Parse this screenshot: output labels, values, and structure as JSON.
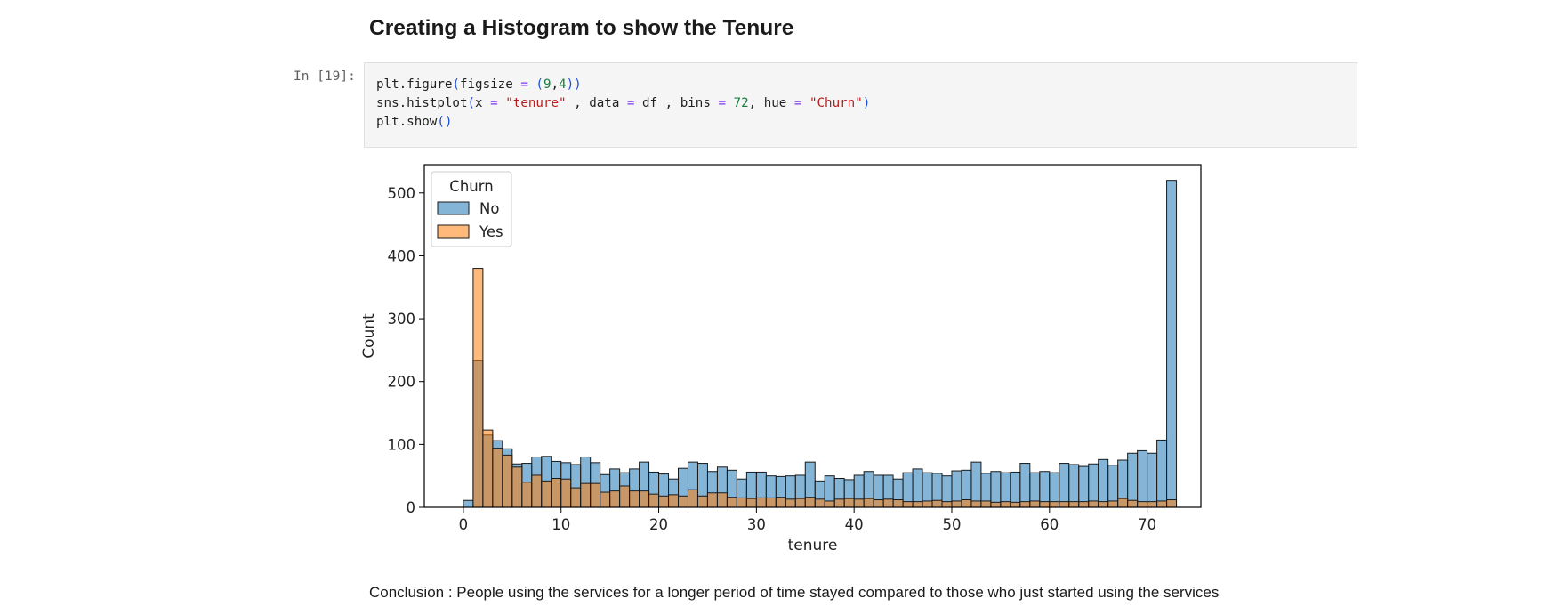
{
  "cell": {
    "heading": "Creating a Histogram to show the Tenure",
    "prompt": "In [19]:",
    "code_lines": [
      "plt.figure(figsize = (9,4))",
      "sns.histplot(x = \"tenure\" , data = df , bins = 72, hue = \"Churn\")",
      "plt.show()"
    ]
  },
  "conclusion": "Conclusion : People using the services for a longer period of time stayed compared to those who just started using the services",
  "chart_data": {
    "type": "bar",
    "xlabel": "tenure",
    "ylabel": "Count",
    "xlim": [
      -4,
      75.5
    ],
    "ylim": [
      0,
      545
    ],
    "xticks": [
      0,
      10,
      20,
      30,
      40,
      50,
      60,
      70
    ],
    "yticks": [
      0,
      100,
      200,
      300,
      400,
      500
    ],
    "bin_start": 0,
    "bin_width": 1,
    "legend": {
      "title": "Churn",
      "placement": "upper-left"
    },
    "colors": {
      "No": "#1f77b4",
      "Yes": "#ff7f0e"
    },
    "series": [
      {
        "name": "No",
        "values": [
          11,
          233,
          115,
          106,
          93,
          69,
          70,
          80,
          81,
          73,
          71,
          68,
          80,
          71,
          52,
          61,
          55,
          61,
          72,
          56,
          53,
          45,
          62,
          72,
          70,
          57,
          64,
          59,
          45,
          56,
          56,
          50,
          49,
          50,
          51,
          72,
          42,
          50,
          46,
          44,
          51,
          57,
          51,
          51,
          45,
          55,
          61,
          55,
          54,
          50,
          58,
          59,
          72,
          54,
          57,
          55,
          56,
          70,
          55,
          57,
          55,
          70,
          68,
          65,
          69,
          76,
          67,
          75,
          86,
          90,
          86,
          107,
          520
        ]
      },
      {
        "name": "Yes",
        "values": [
          0,
          380,
          123,
          94,
          83,
          64,
          40,
          51,
          42,
          46,
          45,
          31,
          38,
          38,
          24,
          26,
          34,
          26,
          26,
          21,
          18,
          20,
          18,
          28,
          18,
          23,
          23,
          16,
          15,
          14,
          15,
          15,
          16,
          13,
          14,
          16,
          13,
          10,
          13,
          14,
          13,
          14,
          12,
          13,
          12,
          9,
          9,
          10,
          11,
          9,
          10,
          12,
          10,
          10,
          8,
          9,
          8,
          9,
          10,
          9,
          9,
          9,
          9,
          9,
          10,
          9,
          10,
          14,
          11,
          9,
          9,
          10,
          12
        ]
      }
    ]
  }
}
